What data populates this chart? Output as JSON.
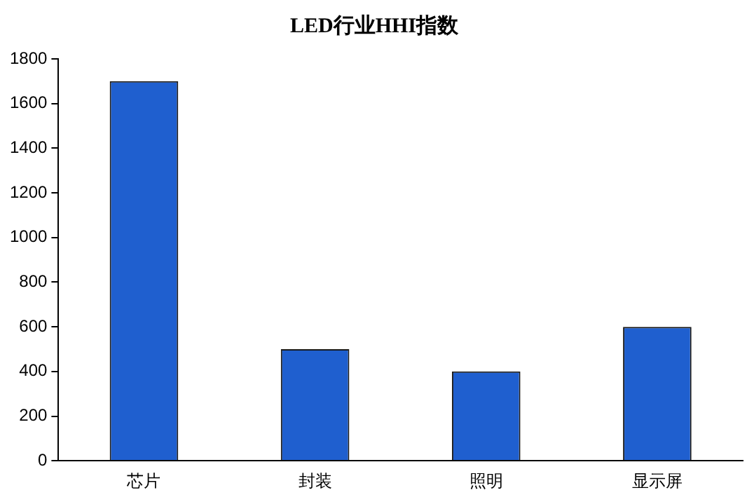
{
  "chart_data": {
    "type": "bar",
    "title": "LED行业HHI指数",
    "categories": [
      "芯片",
      "封装",
      "照明",
      "显示屏"
    ],
    "values": [
      1700,
      500,
      400,
      600
    ],
    "color": "#1f5fcf",
    "ylim": [
      0,
      1800
    ],
    "yticks": [
      0,
      200,
      400,
      600,
      800,
      1000,
      1200,
      1400,
      1600,
      1800
    ],
    "grid": false,
    "legend": false
  }
}
